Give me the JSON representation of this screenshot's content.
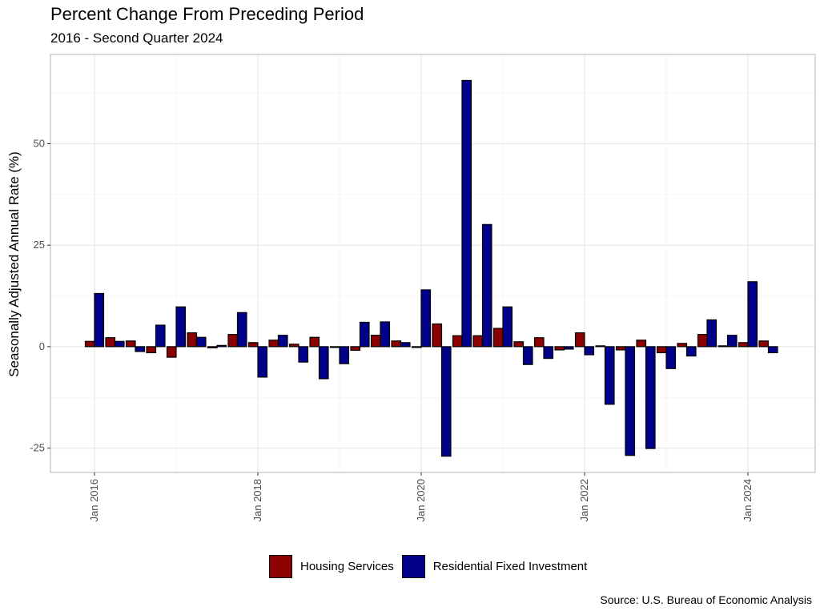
{
  "chart_data": {
    "type": "bar",
    "title": "Percent Change From Preceding Period",
    "subtitle": "2016 - Second Quarter 2024",
    "ylabel": "Seasonally Adjusted Annual Rate (%)",
    "xlabel": "",
    "ylim": [
      -31,
      72
    ],
    "yticks": [
      -25,
      0,
      25,
      50
    ],
    "x_ticks": [
      "Jan 2016",
      "Jan 2018",
      "Jan 2020",
      "Jan 2022",
      "Jan 2024"
    ],
    "grid": true,
    "legend_position": "bottom",
    "categories": [
      "2016 Q1",
      "2016 Q2",
      "2016 Q3",
      "2016 Q4",
      "2017 Q1",
      "2017 Q2",
      "2017 Q3",
      "2017 Q4",
      "2018 Q1",
      "2018 Q2",
      "2018 Q3",
      "2018 Q4",
      "2019 Q1",
      "2019 Q2",
      "2019 Q3",
      "2019 Q4",
      "2020 Q1",
      "2020 Q2",
      "2020 Q3",
      "2020 Q4",
      "2021 Q1",
      "2021 Q2",
      "2021 Q3",
      "2021 Q4",
      "2022 Q1",
      "2022 Q2",
      "2022 Q3",
      "2022 Q4",
      "2023 Q1",
      "2023 Q2",
      "2023 Q3",
      "2023 Q4",
      "2024 Q1",
      "2024 Q2"
    ],
    "series": [
      {
        "name": "Housing Services",
        "color": "#8b0000",
        "values": [
          1.3,
          2.2,
          1.4,
          -1.5,
          -2.6,
          3.4,
          -0.3,
          3.0,
          1.0,
          1.6,
          0.6,
          2.3,
          -0.2,
          -0.9,
          2.8,
          1.4,
          -0.2,
          5.6,
          2.7,
          2.7,
          4.5,
          1.2,
          2.2,
          -0.8,
          3.4,
          0.2,
          -0.8,
          1.6,
          -1.5,
          0.8,
          3.0,
          0.2,
          1.0,
          1.4
        ]
      },
      {
        "name": "Residential Fixed Investment",
        "color": "#00008b",
        "values": [
          13.1,
          1.3,
          -1.2,
          5.3,
          9.8,
          2.3,
          0.3,
          8.4,
          -7.5,
          2.8,
          -3.8,
          -7.9,
          -4.2,
          6.0,
          6.1,
          1.0,
          14.0,
          -27.0,
          65.6,
          30.1,
          9.8,
          -4.4,
          -2.9,
          -0.6,
          -2.0,
          -14.2,
          -26.8,
          -25.1,
          -5.4,
          -2.3,
          6.6,
          2.8,
          16.0,
          -1.5
        ]
      }
    ],
    "source": "Source: U.S. Bureau of Economic Analysis"
  }
}
